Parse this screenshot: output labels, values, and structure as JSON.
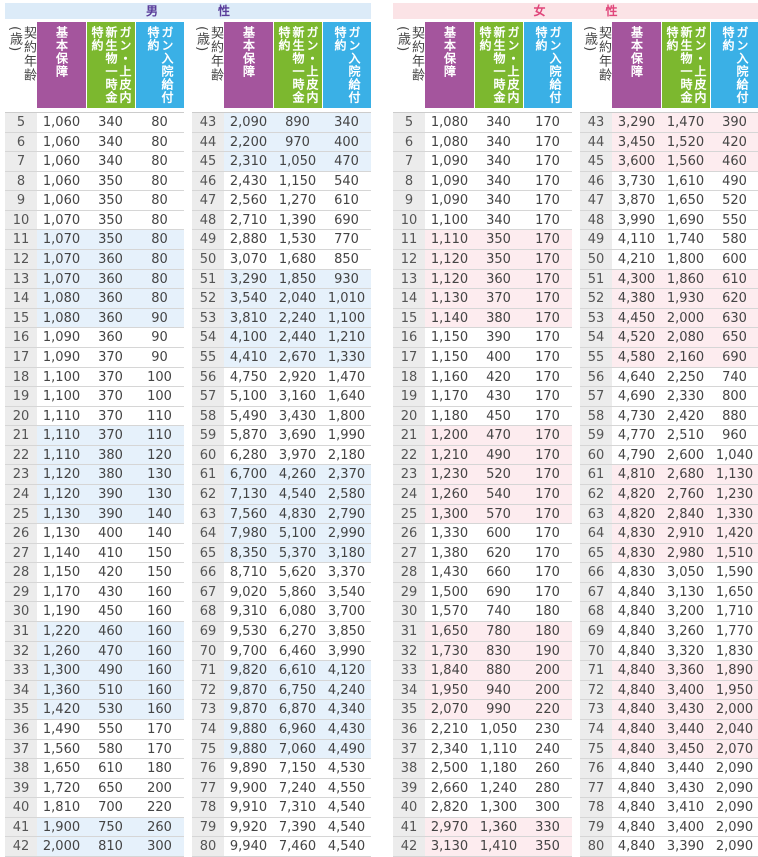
{
  "male": {
    "title_chars": [
      "男",
      "性"
    ],
    "headers": {
      "age": "契約年齢(歳)",
      "base": "基本保障",
      "cancer_lump": "ガン・上皮内新生物一時金特約",
      "cancer_hosp": "ガン入院給付特約"
    },
    "rows": [
      [
        "5",
        "1,060",
        "340",
        "80"
      ],
      [
        "6",
        "1,060",
        "340",
        "80"
      ],
      [
        "7",
        "1,060",
        "340",
        "80"
      ],
      [
        "8",
        "1,060",
        "350",
        "80"
      ],
      [
        "9",
        "1,060",
        "350",
        "80"
      ],
      [
        "10",
        "1,070",
        "350",
        "80"
      ],
      [
        "11",
        "1,070",
        "350",
        "80"
      ],
      [
        "12",
        "1,070",
        "360",
        "80"
      ],
      [
        "13",
        "1,070",
        "360",
        "80"
      ],
      [
        "14",
        "1,080",
        "360",
        "80"
      ],
      [
        "15",
        "1,080",
        "360",
        "90"
      ],
      [
        "16",
        "1,090",
        "360",
        "90"
      ],
      [
        "17",
        "1,090",
        "370",
        "90"
      ],
      [
        "18",
        "1,100",
        "370",
        "100"
      ],
      [
        "19",
        "1,100",
        "370",
        "100"
      ],
      [
        "20",
        "1,110",
        "370",
        "110"
      ],
      [
        "21",
        "1,110",
        "370",
        "110"
      ],
      [
        "22",
        "1,110",
        "380",
        "120"
      ],
      [
        "23",
        "1,120",
        "380",
        "130"
      ],
      [
        "24",
        "1,120",
        "390",
        "130"
      ],
      [
        "25",
        "1,130",
        "390",
        "140"
      ],
      [
        "26",
        "1,130",
        "400",
        "140"
      ],
      [
        "27",
        "1,140",
        "410",
        "150"
      ],
      [
        "28",
        "1,150",
        "420",
        "150"
      ],
      [
        "29",
        "1,170",
        "430",
        "160"
      ],
      [
        "30",
        "1,190",
        "450",
        "160"
      ],
      [
        "31",
        "1,220",
        "460",
        "160"
      ],
      [
        "32",
        "1,260",
        "470",
        "160"
      ],
      [
        "33",
        "1,300",
        "490",
        "160"
      ],
      [
        "34",
        "1,360",
        "510",
        "160"
      ],
      [
        "35",
        "1,420",
        "530",
        "160"
      ],
      [
        "36",
        "1,490",
        "550",
        "170"
      ],
      [
        "37",
        "1,560",
        "580",
        "170"
      ],
      [
        "38",
        "1,650",
        "610",
        "180"
      ],
      [
        "39",
        "1,720",
        "650",
        "200"
      ],
      [
        "40",
        "1,810",
        "700",
        "220"
      ],
      [
        "41",
        "1,900",
        "750",
        "260"
      ],
      [
        "42",
        "2,000",
        "810",
        "300"
      ],
      [
        "43",
        "2,090",
        "890",
        "340"
      ],
      [
        "44",
        "2,200",
        "970",
        "400"
      ],
      [
        "45",
        "2,310",
        "1,050",
        "470"
      ],
      [
        "46",
        "2,430",
        "1,150",
        "540"
      ],
      [
        "47",
        "2,560",
        "1,270",
        "610"
      ],
      [
        "48",
        "2,710",
        "1,390",
        "690"
      ],
      [
        "49",
        "2,880",
        "1,530",
        "770"
      ],
      [
        "50",
        "3,070",
        "1,680",
        "850"
      ],
      [
        "51",
        "3,290",
        "1,850",
        "930"
      ],
      [
        "52",
        "3,540",
        "2,040",
        "1,010"
      ],
      [
        "53",
        "3,810",
        "2,240",
        "1,100"
      ],
      [
        "54",
        "4,100",
        "2,440",
        "1,210"
      ],
      [
        "55",
        "4,410",
        "2,670",
        "1,330"
      ],
      [
        "56",
        "4,750",
        "2,920",
        "1,470"
      ],
      [
        "57",
        "5,100",
        "3,160",
        "1,640"
      ],
      [
        "58",
        "5,490",
        "3,430",
        "1,800"
      ],
      [
        "59",
        "5,870",
        "3,690",
        "1,990"
      ],
      [
        "60",
        "6,280",
        "3,970",
        "2,180"
      ],
      [
        "61",
        "6,700",
        "4,260",
        "2,370"
      ],
      [
        "62",
        "7,130",
        "4,540",
        "2,580"
      ],
      [
        "63",
        "7,560",
        "4,830",
        "2,790"
      ],
      [
        "64",
        "7,980",
        "5,100",
        "2,990"
      ],
      [
        "65",
        "8,350",
        "5,370",
        "3,180"
      ],
      [
        "66",
        "8,710",
        "5,620",
        "3,370"
      ],
      [
        "67",
        "9,020",
        "5,860",
        "3,540"
      ],
      [
        "68",
        "9,310",
        "6,080",
        "3,700"
      ],
      [
        "69",
        "9,530",
        "6,270",
        "3,850"
      ],
      [
        "70",
        "9,700",
        "6,460",
        "3,990"
      ],
      [
        "71",
        "9,820",
        "6,610",
        "4,120"
      ],
      [
        "72",
        "9,870",
        "6,750",
        "4,240"
      ],
      [
        "73",
        "9,870",
        "6,870",
        "4,340"
      ],
      [
        "74",
        "9,880",
        "6,960",
        "4,430"
      ],
      [
        "75",
        "9,880",
        "7,060",
        "4,490"
      ],
      [
        "76",
        "9,890",
        "7,150",
        "4,530"
      ],
      [
        "77",
        "9,900",
        "7,240",
        "4,550"
      ],
      [
        "78",
        "9,910",
        "7,310",
        "4,540"
      ],
      [
        "79",
        "9,920",
        "7,390",
        "4,540"
      ],
      [
        "80",
        "9,940",
        "7,460",
        "4,540"
      ]
    ]
  },
  "female": {
    "title_chars": [
      "女",
      "性"
    ],
    "headers": {
      "age": "契約年齢(歳)",
      "base": "基本保障",
      "cancer_lump": "ガン・上皮内新生物一時金特約",
      "cancer_hosp": "ガン入院給付特約"
    },
    "rows": [
      [
        "5",
        "1,080",
        "340",
        "170"
      ],
      [
        "6",
        "1,080",
        "340",
        "170"
      ],
      [
        "7",
        "1,090",
        "340",
        "170"
      ],
      [
        "8",
        "1,090",
        "340",
        "170"
      ],
      [
        "9",
        "1,090",
        "340",
        "170"
      ],
      [
        "10",
        "1,100",
        "340",
        "170"
      ],
      [
        "11",
        "1,110",
        "350",
        "170"
      ],
      [
        "12",
        "1,120",
        "350",
        "170"
      ],
      [
        "13",
        "1,120",
        "360",
        "170"
      ],
      [
        "14",
        "1,130",
        "370",
        "170"
      ],
      [
        "15",
        "1,140",
        "380",
        "170"
      ],
      [
        "16",
        "1,150",
        "390",
        "170"
      ],
      [
        "17",
        "1,150",
        "400",
        "170"
      ],
      [
        "18",
        "1,160",
        "420",
        "170"
      ],
      [
        "19",
        "1,170",
        "430",
        "170"
      ],
      [
        "20",
        "1,180",
        "450",
        "170"
      ],
      [
        "21",
        "1,200",
        "470",
        "170"
      ],
      [
        "22",
        "1,210",
        "490",
        "170"
      ],
      [
        "23",
        "1,230",
        "520",
        "170"
      ],
      [
        "24",
        "1,260",
        "540",
        "170"
      ],
      [
        "25",
        "1,300",
        "570",
        "170"
      ],
      [
        "26",
        "1,330",
        "600",
        "170"
      ],
      [
        "27",
        "1,380",
        "620",
        "170"
      ],
      [
        "28",
        "1,430",
        "660",
        "170"
      ],
      [
        "29",
        "1,500",
        "690",
        "170"
      ],
      [
        "30",
        "1,570",
        "740",
        "180"
      ],
      [
        "31",
        "1,650",
        "780",
        "180"
      ],
      [
        "32",
        "1,730",
        "830",
        "190"
      ],
      [
        "33",
        "1,840",
        "880",
        "200"
      ],
      [
        "34",
        "1,950",
        "940",
        "200"
      ],
      [
        "35",
        "2,070",
        "990",
        "220"
      ],
      [
        "36",
        "2,210",
        "1,050",
        "230"
      ],
      [
        "37",
        "2,340",
        "1,110",
        "240"
      ],
      [
        "38",
        "2,500",
        "1,180",
        "260"
      ],
      [
        "39",
        "2,660",
        "1,240",
        "280"
      ],
      [
        "40",
        "2,820",
        "1,300",
        "300"
      ],
      [
        "41",
        "2,970",
        "1,360",
        "330"
      ],
      [
        "42",
        "3,130",
        "1,410",
        "350"
      ],
      [
        "43",
        "3,290",
        "1,470",
        "390"
      ],
      [
        "44",
        "3,450",
        "1,520",
        "420"
      ],
      [
        "45",
        "3,600",
        "1,560",
        "460"
      ],
      [
        "46",
        "3,730",
        "1,610",
        "490"
      ],
      [
        "47",
        "3,870",
        "1,650",
        "520"
      ],
      [
        "48",
        "3,990",
        "1,690",
        "550"
      ],
      [
        "49",
        "4,110",
        "1,740",
        "580"
      ],
      [
        "50",
        "4,210",
        "1,800",
        "600"
      ],
      [
        "51",
        "4,300",
        "1,860",
        "610"
      ],
      [
        "52",
        "4,380",
        "1,930",
        "620"
      ],
      [
        "53",
        "4,450",
        "2,000",
        "630"
      ],
      [
        "54",
        "4,520",
        "2,080",
        "650"
      ],
      [
        "55",
        "4,580",
        "2,160",
        "690"
      ],
      [
        "56",
        "4,640",
        "2,250",
        "740"
      ],
      [
        "57",
        "4,690",
        "2,330",
        "800"
      ],
      [
        "58",
        "4,730",
        "2,420",
        "880"
      ],
      [
        "59",
        "4,770",
        "2,510",
        "960"
      ],
      [
        "60",
        "4,790",
        "2,600",
        "1,040"
      ],
      [
        "61",
        "4,810",
        "2,680",
        "1,130"
      ],
      [
        "62",
        "4,820",
        "2,760",
        "1,230"
      ],
      [
        "63",
        "4,820",
        "2,840",
        "1,330"
      ],
      [
        "64",
        "4,830",
        "2,910",
        "1,420"
      ],
      [
        "65",
        "4,830",
        "2,980",
        "1,510"
      ],
      [
        "66",
        "4,830",
        "3,050",
        "1,590"
      ],
      [
        "67",
        "4,840",
        "3,130",
        "1,650"
      ],
      [
        "68",
        "4,840",
        "3,200",
        "1,710"
      ],
      [
        "69",
        "4,840",
        "3,260",
        "1,770"
      ],
      [
        "70",
        "4,840",
        "3,320",
        "1,830"
      ],
      [
        "71",
        "4,840",
        "3,360",
        "1,890"
      ],
      [
        "72",
        "4,840",
        "3,400",
        "1,950"
      ],
      [
        "73",
        "4,840",
        "3,430",
        "2,000"
      ],
      [
        "74",
        "4,840",
        "3,440",
        "2,040"
      ],
      [
        "75",
        "4,840",
        "3,450",
        "2,070"
      ],
      [
        "76",
        "4,840",
        "3,440",
        "2,090"
      ],
      [
        "77",
        "4,840",
        "3,430",
        "2,090"
      ],
      [
        "78",
        "4,840",
        "3,410",
        "2,090"
      ],
      [
        "79",
        "4,840",
        "3,400",
        "2,090"
      ],
      [
        "80",
        "4,840",
        "3,390",
        "2,090"
      ]
    ]
  }
}
